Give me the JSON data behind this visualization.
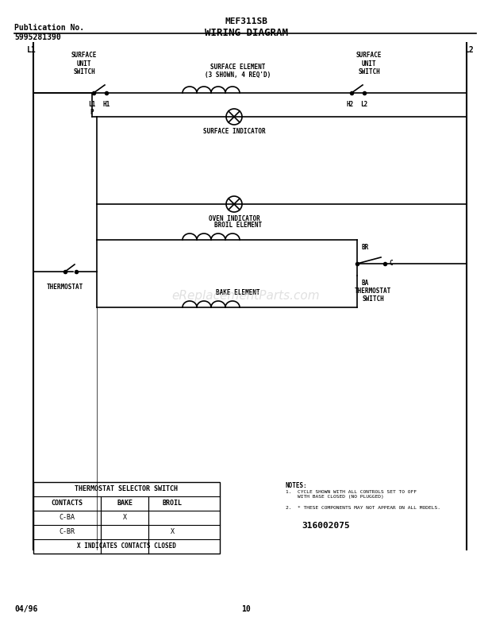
{
  "title_left": "Publication No.\n5995281390",
  "title_center": "MEF311SB",
  "title_diagram": "WIRING DIAGRAM",
  "footer_left": "04/96",
  "footer_center": "10",
  "doc_number": "316002075",
  "bg_color": "#ffffff",
  "line_color": "#000000",
  "notes_line1": "NOTES:",
  "notes_line2": "1.  CYCLE SHOWN WITH ALL CONTROLS SET TO OFF\n    WITH BASE CLOSED (NO PLUGGED)",
  "notes_line3": "2.  * THESE COMPONENTS MAY NOT APPEAR ON ALL MODELS.",
  "table_title": "THERMOSTAT SELECTOR SWITCH",
  "table_headers": [
    "CONTACTS",
    "BAKE",
    "BROIL"
  ],
  "table_rows": [
    [
      "C-BA",
      "X",
      ""
    ],
    [
      "C-BR",
      "",
      "X"
    ]
  ],
  "table_footer": "X INDICATES CONTACTS CLOSED"
}
